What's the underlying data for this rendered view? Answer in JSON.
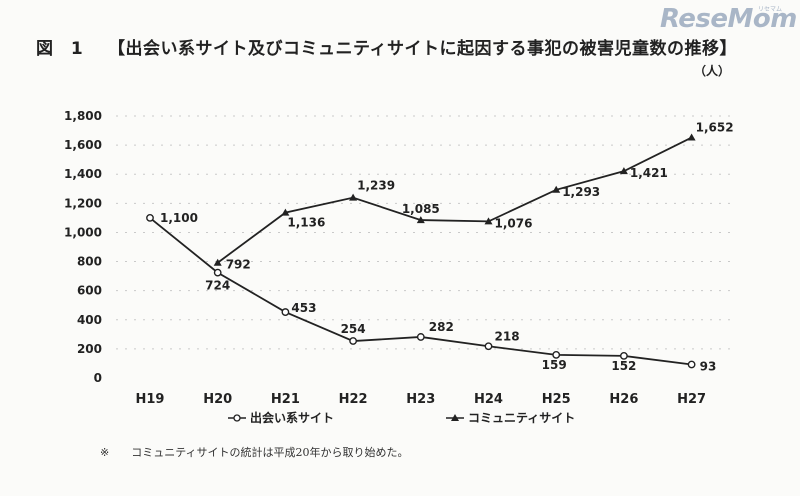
{
  "header": {
    "figure_label": "図 1",
    "title": "【出会い系サイト及びコミュニティサイトに起因する事犯の被害児童数の推移】",
    "unit": "（人）"
  },
  "logo": {
    "text": "ReseMom",
    "sub": "リセマム"
  },
  "footnote": {
    "mark": "※",
    "text": "コミュニティサイトの統計は平成20年から取り始めた。"
  },
  "chart_data": {
    "type": "line",
    "title": "【出会い系サイト及びコミュニティサイトに起因する事犯の被害児童数の推移】",
    "ylabel": "（人）",
    "xlabel": "",
    "categories": [
      "H19",
      "H20",
      "H21",
      "H22",
      "H23",
      "H24",
      "H25",
      "H26",
      "H27"
    ],
    "ylim": [
      0,
      1800
    ],
    "yticks": [
      0,
      200,
      400,
      600,
      800,
      1000,
      1200,
      1400,
      1600,
      1800
    ],
    "ytick_labels": [
      "0",
      "200",
      "400",
      "600",
      "800",
      "1,000",
      "1,200",
      "1,400",
      "1,600",
      "1,800"
    ],
    "grid": false,
    "legend_position": "bottom",
    "series": [
      {
        "name": "出会い系サイト",
        "marker": "circle",
        "values": [
          1100,
          724,
          453,
          254,
          282,
          218,
          159,
          152,
          93
        ],
        "labels": [
          "1,100",
          "724",
          "453",
          "254",
          "282",
          "218",
          "159",
          "152",
          "93"
        ]
      },
      {
        "name": "コミュニティサイト",
        "marker": "triangle",
        "values": [
          null,
          792,
          1136,
          1239,
          1085,
          1076,
          1293,
          1421,
          1652
        ],
        "labels": [
          "",
          "792",
          "1,136",
          "1,239",
          "1,085",
          "1,076",
          "1,293",
          "1,421",
          "1,652"
        ]
      }
    ]
  }
}
